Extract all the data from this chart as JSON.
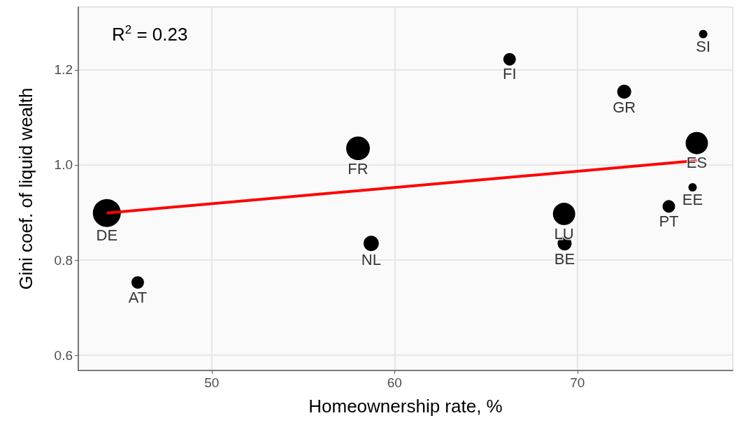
{
  "chart_data": {
    "type": "scatter",
    "xlabel": "Homeownership rate, %",
    "ylabel": "Gini coef. of liquid wealth",
    "xlim": [
      42.7,
      78.5
    ],
    "xticks": [
      50,
      60,
      70
    ],
    "ylim": [
      0.568,
      1.332
    ],
    "yticks": [
      0.6,
      0.8,
      {
        "value": 1,
        "label": "1.0"
      },
      1.2
    ],
    "grid": true,
    "marker": "circle",
    "series": [
      {
        "type": "bubble",
        "color": "#000000",
        "x": [
          44.26,
          45.95,
          58.0,
          58.72,
          66.29,
          72.56,
          69.27,
          69.3,
          75.0,
          76.3,
          76.53,
          76.88
        ],
        "values": [
          0.899,
          0.753,
          1.035,
          0.835,
          1.222,
          1.154,
          0.897,
          0.835,
          0.913,
          0.953,
          1.046,
          1.275
        ],
        "sizes": [
          1,
          0.2,
          0.72,
          0.3,
          0.2,
          0.25,
          0.64,
          0.25,
          0.2,
          0.09,
          0.64,
          0.09
        ]
      },
      {
        "type": "line",
        "color": "#ff0000",
        "marker": "none",
        "x": [
          44.26,
          76.53
        ],
        "values": [
          0.899,
          1.009
        ]
      }
    ],
    "annotations": [
      "R$^{2}$ = 0.23",
      {
        "text": "DE",
        "x": 44.26,
        "y": 0.899
      },
      {
        "text": "AT",
        "x": 45.95,
        "y": 0.753
      },
      {
        "text": "FR",
        "x": 58.0,
        "y": 1.035
      },
      {
        "text": "NL",
        "x": 58.72,
        "y": 0.835
      },
      {
        "text": "FI",
        "x": 66.29,
        "y": 1.222
      },
      {
        "text": "GR",
        "x": 72.56,
        "y": 1.154
      },
      {
        "text": "LU",
        "x": 69.27,
        "y": 0.897
      },
      {
        "text": "BE",
        "x": 69.3,
        "y": 0.835
      },
      {
        "text": "PT",
        "x": 75.0,
        "y": 0.913
      },
      {
        "text": "EE",
        "x": 76.3,
        "y": 0.953
      },
      {
        "text": "ES",
        "x": 76.53,
        "y": 1.046
      },
      {
        "text": "SI",
        "x": 76.88,
        "y": 1.275
      }
    ]
  }
}
